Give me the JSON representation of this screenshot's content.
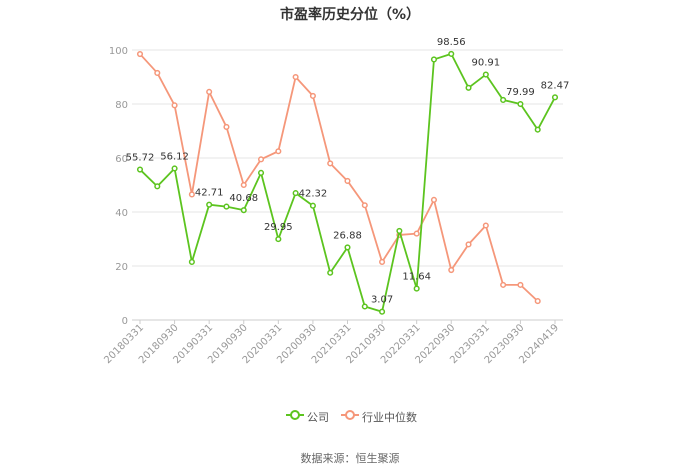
{
  "title": "市盈率历史分位（%）",
  "source": "数据来源：恒生聚源",
  "legend": {
    "company": "公司",
    "industry": "行业中位数"
  },
  "colors": {
    "company": "#5cc41f",
    "industry": "#f5977a",
    "grid": "#e6e6e6",
    "axis": "#999999"
  },
  "chart_data": {
    "type": "line",
    "title": "市盈率历史分位（%）",
    "ylim": [
      0,
      100
    ],
    "yticks": [
      0,
      20,
      40,
      60,
      80,
      100
    ],
    "grid": true,
    "legend_position": "bottom",
    "x": [
      "20180331",
      "20180630",
      "20180930",
      "20181231",
      "20190331",
      "20190630",
      "20190930",
      "20191231",
      "20200331",
      "20200630",
      "20200930",
      "20201231",
      "20210331",
      "20210630",
      "20210930",
      "20211231",
      "20220331",
      "20220630",
      "20220930",
      "20221231",
      "20230331",
      "20230630",
      "20230930",
      "20231231",
      "20240419"
    ],
    "xtick_labels": [
      "20180331",
      "20180930",
      "20190331",
      "20190930",
      "20200331",
      "20200930",
      "20210331",
      "20210930",
      "20220331",
      "20220930",
      "20230331",
      "20230930",
      "20240419"
    ],
    "series": [
      {
        "name": "公司",
        "values": [
          55.72,
          49.5,
          56.12,
          21.5,
          42.71,
          42.0,
          40.68,
          54.5,
          29.95,
          47.0,
          42.32,
          17.5,
          26.88,
          5.0,
          3.07,
          33.0,
          11.64,
          96.5,
          98.56,
          86.0,
          90.91,
          81.5,
          79.99,
          70.5,
          82.47
        ],
        "labels": [
          "55.72",
          null,
          "56.12",
          null,
          "42.71",
          null,
          "40.68",
          null,
          "29.95",
          null,
          "42.32",
          null,
          "26.88",
          null,
          "3.07",
          null,
          "11.64",
          null,
          "98.56",
          null,
          "90.91",
          null,
          "79.99",
          null,
          "82.47"
        ]
      },
      {
        "name": "行业中位数",
        "values": [
          98.5,
          91.5,
          79.5,
          46.5,
          84.5,
          71.5,
          50.0,
          59.5,
          62.5,
          90.0,
          83.0,
          58.0,
          51.5,
          42.5,
          21.5,
          31.5,
          32.0,
          44.5,
          18.5,
          28.0,
          35.0,
          13.0,
          13.0,
          7.0,
          null
        ]
      }
    ]
  }
}
